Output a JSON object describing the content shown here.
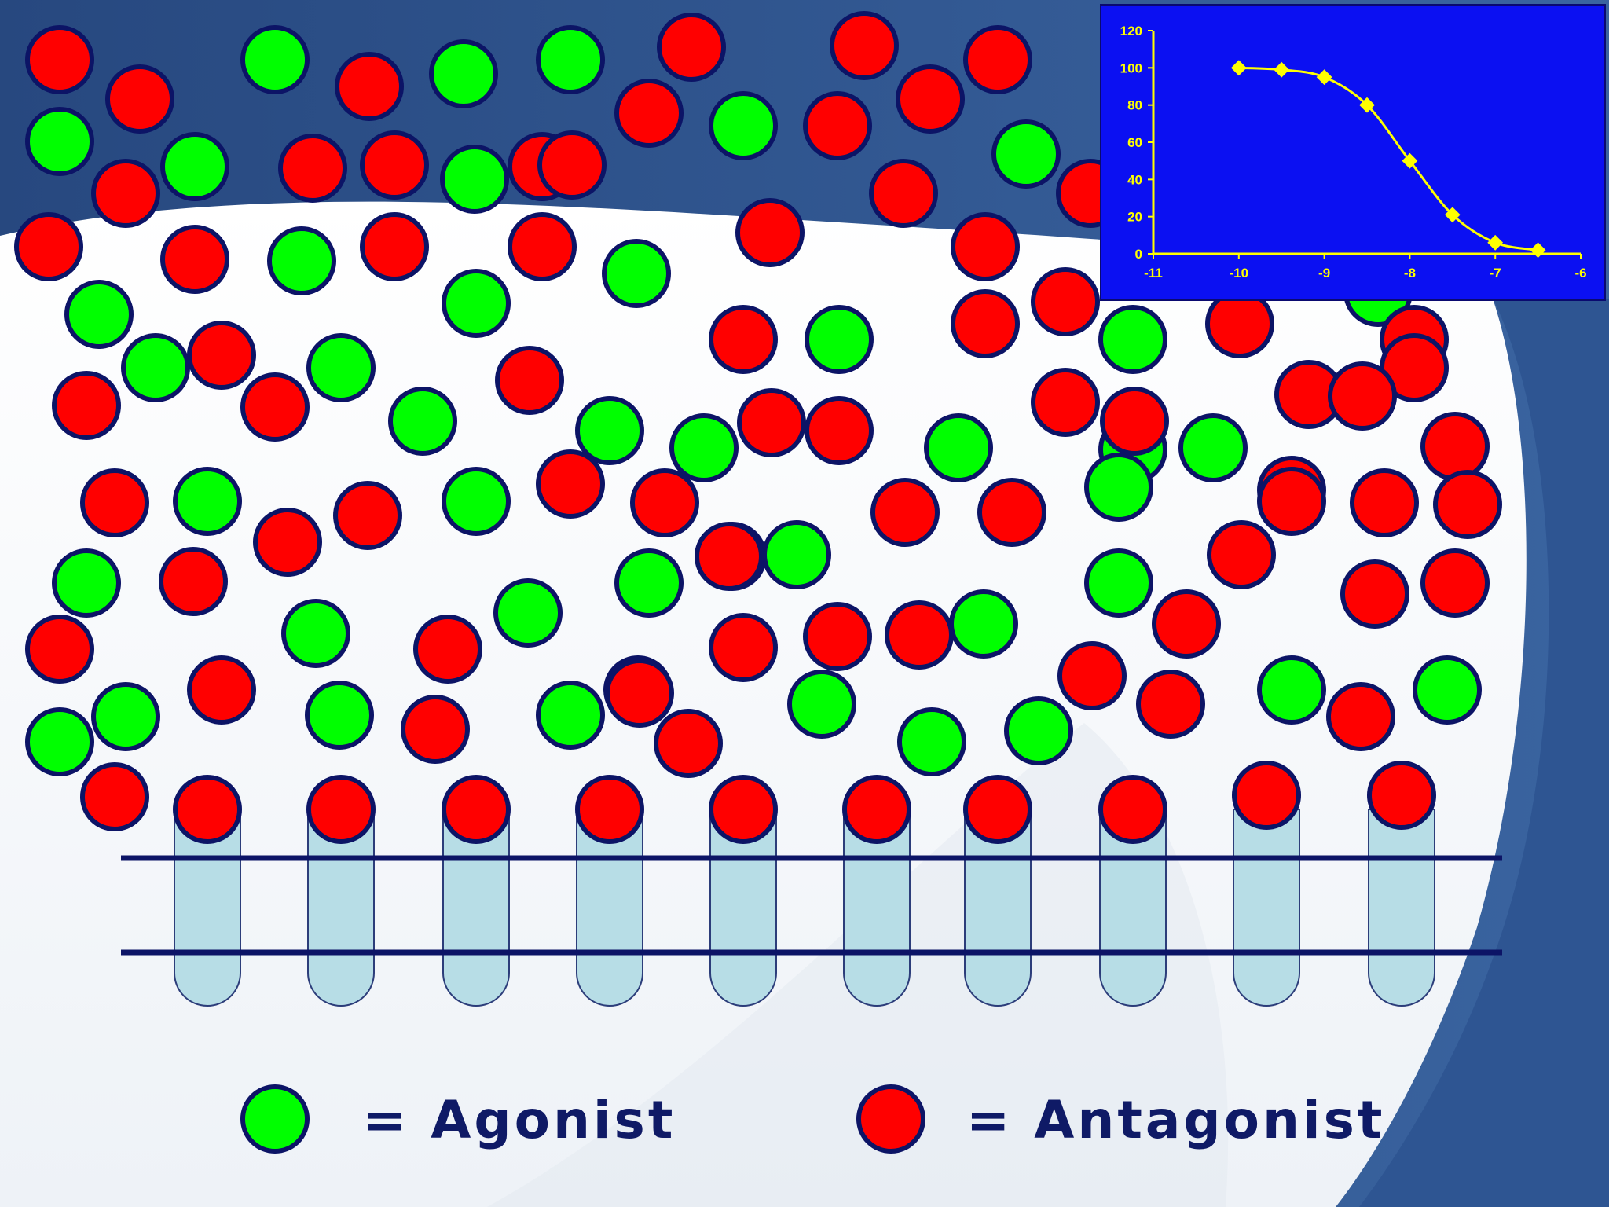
{
  "legend": {
    "agonist_label": "= Agonist",
    "antagonist_label": "= Antagonist"
  },
  "colors": {
    "agonist": "#00ff00",
    "antagonist": "#ff0000",
    "molecule_outline": "#0c1466",
    "receptor_fill": "#b7dde6",
    "membrane_line": "#0c1466",
    "slide_dark": "#2b4f86",
    "slide_light": "#f1f4f8",
    "inset_background": "#0b10f2",
    "curve": "#ffff00"
  },
  "receptor_count": 10,
  "bound_ligand": "antagonist",
  "chart_data": {
    "type": "line",
    "xlim": [
      -11,
      -6
    ],
    "ylim": [
      0,
      120
    ],
    "x_ticks": [
      "-11",
      "-10",
      "-9",
      "-8",
      "-7",
      "-6"
    ],
    "y_ticks": [
      "0",
      "20",
      "40",
      "60",
      "80",
      "100",
      "120"
    ],
    "xlabel": "",
    "ylabel": "",
    "title": "",
    "grid": false,
    "series": [
      {
        "x": [
          -10,
          -9.5,
          -9,
          -8.5,
          -8,
          -7.5,
          -7,
          -6.5
        ],
        "y": [
          100,
          99,
          95,
          80,
          50,
          21,
          6,
          2
        ]
      }
    ]
  }
}
